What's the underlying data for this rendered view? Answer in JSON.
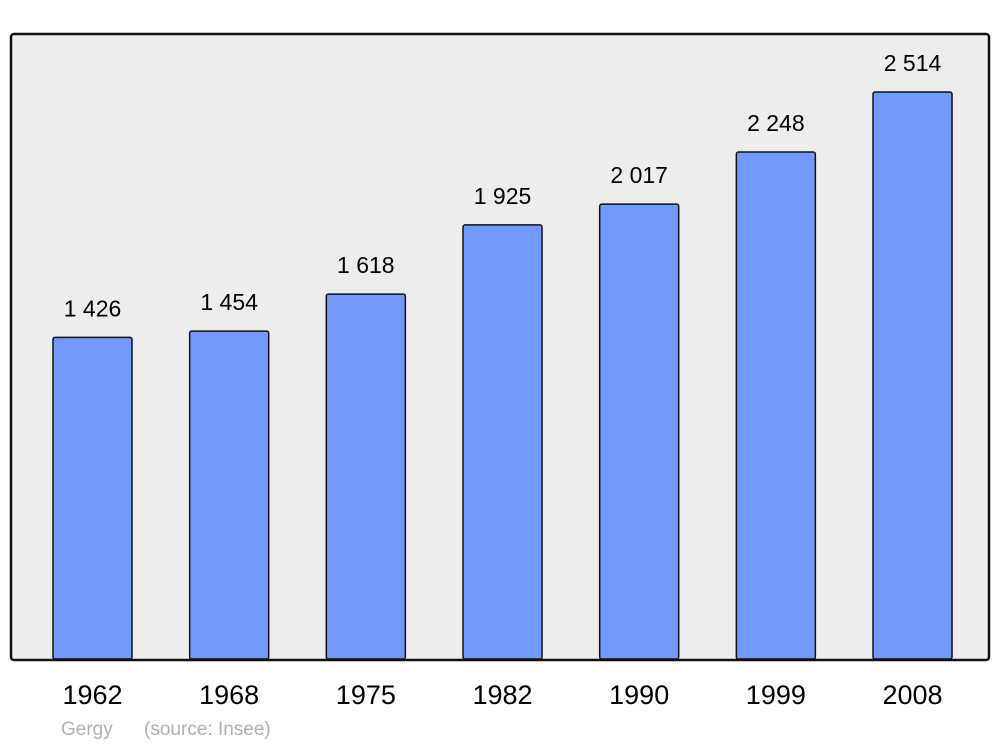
{
  "chart_data": {
    "type": "bar",
    "title": "",
    "xlabel": "",
    "ylabel": "",
    "categories": [
      "1962",
      "1968",
      "1975",
      "1982",
      "1990",
      "1999",
      "2008"
    ],
    "values": [
      1426,
      1454,
      1618,
      1925,
      2017,
      2248,
      2514
    ],
    "value_labels": [
      "1 426",
      "1 454",
      "1 618",
      "1 925",
      "2 017",
      "2 248",
      "2 514"
    ],
    "ylim": [
      0,
      2767
    ],
    "grid": false,
    "legend": "none",
    "colors": {
      "bar": "#7399ff",
      "plot_background": "#ededed",
      "border": "#111111"
    }
  },
  "footer": {
    "place": "Gergy",
    "source": "(source: Insee)"
  }
}
